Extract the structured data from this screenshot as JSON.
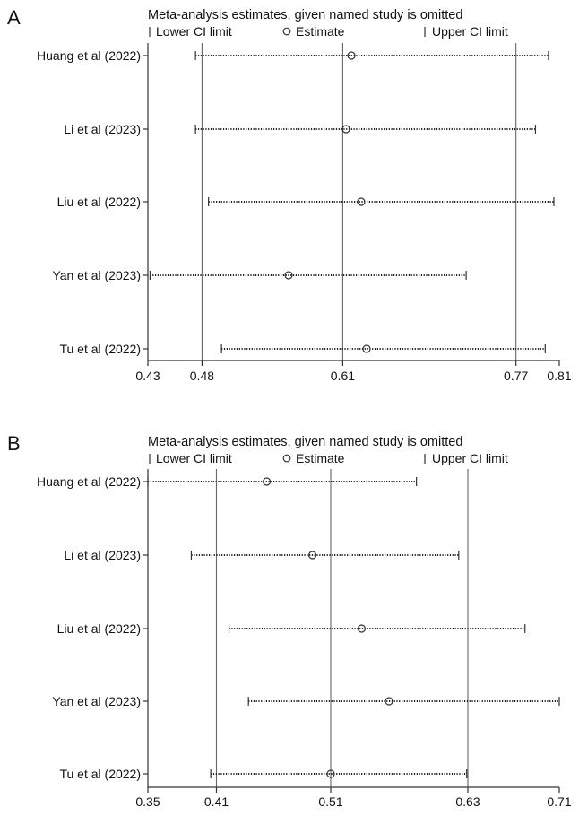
{
  "legend": {
    "lower": "Lower CI limit",
    "estimate": "Estimate",
    "upper": "Upper CI limit"
  },
  "chart_data": [
    {
      "panel": "A",
      "type": "scatter",
      "title": "Meta-analysis estimates, given named study is omitted",
      "xlim": [
        0.43,
        0.81
      ],
      "ticks": [
        0.43,
        0.48,
        0.61,
        0.77,
        0.81
      ],
      "tick_labels": [
        "0.43",
        "0.48",
        "0.61",
        "0.77",
        "0.81"
      ],
      "reference_lines": [
        0.48,
        0.61,
        0.77
      ],
      "studies": [
        {
          "name": "Huang et al (2022)",
          "lower": 0.474,
          "estimate": 0.618,
          "upper": 0.8
        },
        {
          "name": "Li et al (2023)",
          "lower": 0.474,
          "estimate": 0.613,
          "upper": 0.788
        },
        {
          "name": "Liu et al (2022)",
          "lower": 0.486,
          "estimate": 0.627,
          "upper": 0.805
        },
        {
          "name": "Yan et al (2023)",
          "lower": 0.432,
          "estimate": 0.56,
          "upper": 0.724
        },
        {
          "name": "Tu et al (2022)",
          "lower": 0.498,
          "estimate": 0.632,
          "upper": 0.797
        }
      ]
    },
    {
      "panel": "B",
      "type": "scatter",
      "title": "Meta-analysis estimates, given named study is omitted",
      "xlim": [
        0.35,
        0.71
      ],
      "ticks": [
        0.35,
        0.41,
        0.51,
        0.63,
        0.71
      ],
      "tick_labels": [
        "0.35",
        "0.41",
        "0.51",
        "0.63",
        "0.71"
      ],
      "reference_lines": [
        0.41,
        0.51,
        0.63
      ],
      "studies": [
        {
          "name": "Huang et al (2022)",
          "lower": 0.35,
          "estimate": 0.454,
          "upper": 0.585
        },
        {
          "name": "Li et al (2023)",
          "lower": 0.388,
          "estimate": 0.494,
          "upper": 0.622
        },
        {
          "name": "Liu et al (2022)",
          "lower": 0.421,
          "estimate": 0.537,
          "upper": 0.68
        },
        {
          "name": "Yan et al (2023)",
          "lower": 0.438,
          "estimate": 0.561,
          "upper": 0.71
        },
        {
          "name": "Tu et al (2022)",
          "lower": 0.405,
          "estimate": 0.51,
          "upper": 0.629
        }
      ]
    }
  ]
}
